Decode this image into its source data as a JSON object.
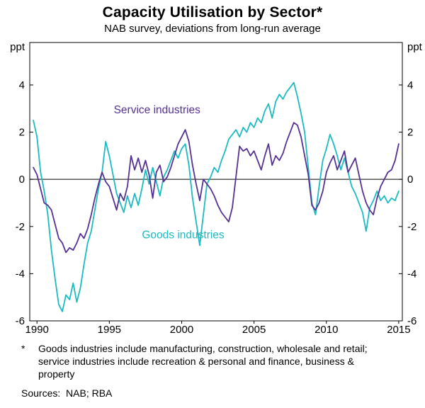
{
  "chart_data": {
    "type": "line",
    "title": "Capacity Utilisation by Sector*",
    "subtitle": "NAB survey, deviations from long-run average",
    "unit_label": "ppt",
    "xlim": [
      1989.5,
      2015.25
    ],
    "ylim": [
      -6,
      5.8
    ],
    "yticks": [
      4,
      2,
      0,
      -2,
      -4,
      -6
    ],
    "xticks": [
      1990,
      1995,
      2000,
      2005,
      2010,
      2015
    ],
    "zero_line": 0,
    "x_start": 1989.75,
    "x_step": 0.25,
    "grid": "zero-line-only",
    "legend": "inline-labels",
    "series": [
      {
        "name": "Service industries",
        "color": "#553192",
        "label_x": 1998.3,
        "label_y": 2.8,
        "values": [
          0.5,
          0.2,
          -0.4,
          -1.0,
          -1.1,
          -1.3,
          -1.9,
          -2.5,
          -2.7,
          -3.1,
          -2.9,
          -3.0,
          -2.7,
          -2.3,
          -2.5,
          -2.1,
          -1.5,
          -0.8,
          -0.2,
          0.3,
          -0.1,
          -0.3,
          -0.8,
          -1.3,
          -0.6,
          -0.9,
          -0.3,
          1.0,
          0.4,
          0.9,
          0.3,
          0.8,
          0.2,
          -0.8,
          0.3,
          0.6,
          -0.1,
          0.1,
          0.5,
          1.0,
          1.5,
          1.8,
          2.1,
          1.6,
          0.6,
          -0.2,
          -0.9,
          0.0,
          -0.2,
          -0.4,
          -0.7,
          -1.1,
          -1.4,
          -1.6,
          -1.8,
          -1.2,
          0.1,
          1.4,
          1.2,
          1.3,
          1.0,
          1.2,
          0.8,
          0.4,
          1.0,
          1.5,
          0.6,
          1.0,
          0.8,
          1.1,
          1.6,
          2.0,
          2.4,
          2.3,
          1.8,
          1.0,
          0.2,
          -1.1,
          -1.3,
          -1.0,
          -0.5,
          0.3,
          0.7,
          1.0,
          0.4,
          0.8,
          1.2,
          0.3,
          0.6,
          0.9,
          0.2,
          -0.5,
          -1.0,
          -1.3,
          -1.5,
          -0.8,
          -0.3,
          0.0,
          0.3,
          0.4,
          0.8,
          1.5
        ]
      },
      {
        "name": "Goods industries",
        "color": "#1CBBC0",
        "label_x": 2000.1,
        "label_y": -2.5,
        "values": [
          2.5,
          1.8,
          0.3,
          -0.5,
          -1.5,
          -3.0,
          -4.2,
          -5.3,
          -5.6,
          -4.9,
          -5.1,
          -4.4,
          -5.2,
          -4.6,
          -3.6,
          -2.7,
          -2.2,
          -1.3,
          -0.4,
          0.3,
          1.6,
          1.0,
          0.2,
          -0.6,
          -1.0,
          -1.4,
          -0.7,
          -1.2,
          -0.6,
          -1.1,
          -0.4,
          0.4,
          -0.2,
          0.5,
          -0.1,
          -0.7,
          0.1,
          0.4,
          0.8,
          1.2,
          0.9,
          1.3,
          1.5,
          0.6,
          -0.8,
          -1.8,
          -2.8,
          -1.5,
          -0.2,
          0.1,
          0.5,
          0.3,
          0.8,
          1.2,
          1.7,
          1.9,
          2.1,
          1.8,
          2.2,
          2.0,
          2.4,
          2.2,
          2.6,
          2.4,
          2.9,
          3.2,
          2.6,
          3.3,
          3.6,
          3.4,
          3.7,
          3.9,
          4.1,
          3.5,
          2.8,
          2.0,
          0.5,
          -1.0,
          -1.5,
          -0.3,
          0.8,
          1.3,
          1.9,
          1.5,
          1.0,
          0.4,
          0.9,
          0.3,
          -0.3,
          -0.6,
          -1.0,
          -1.4,
          -2.2,
          -1.2,
          -0.9,
          -0.5,
          -0.9,
          -0.7,
          -1.0,
          -0.8,
          -0.9,
          -0.5
        ]
      }
    ]
  },
  "footnote": {
    "marker": "*",
    "text": "Goods industries include manufacturing, construction, wholesale and retail; service industries include recreation & personal and finance, business & property"
  },
  "sources": "Sources:  NAB; RBA"
}
